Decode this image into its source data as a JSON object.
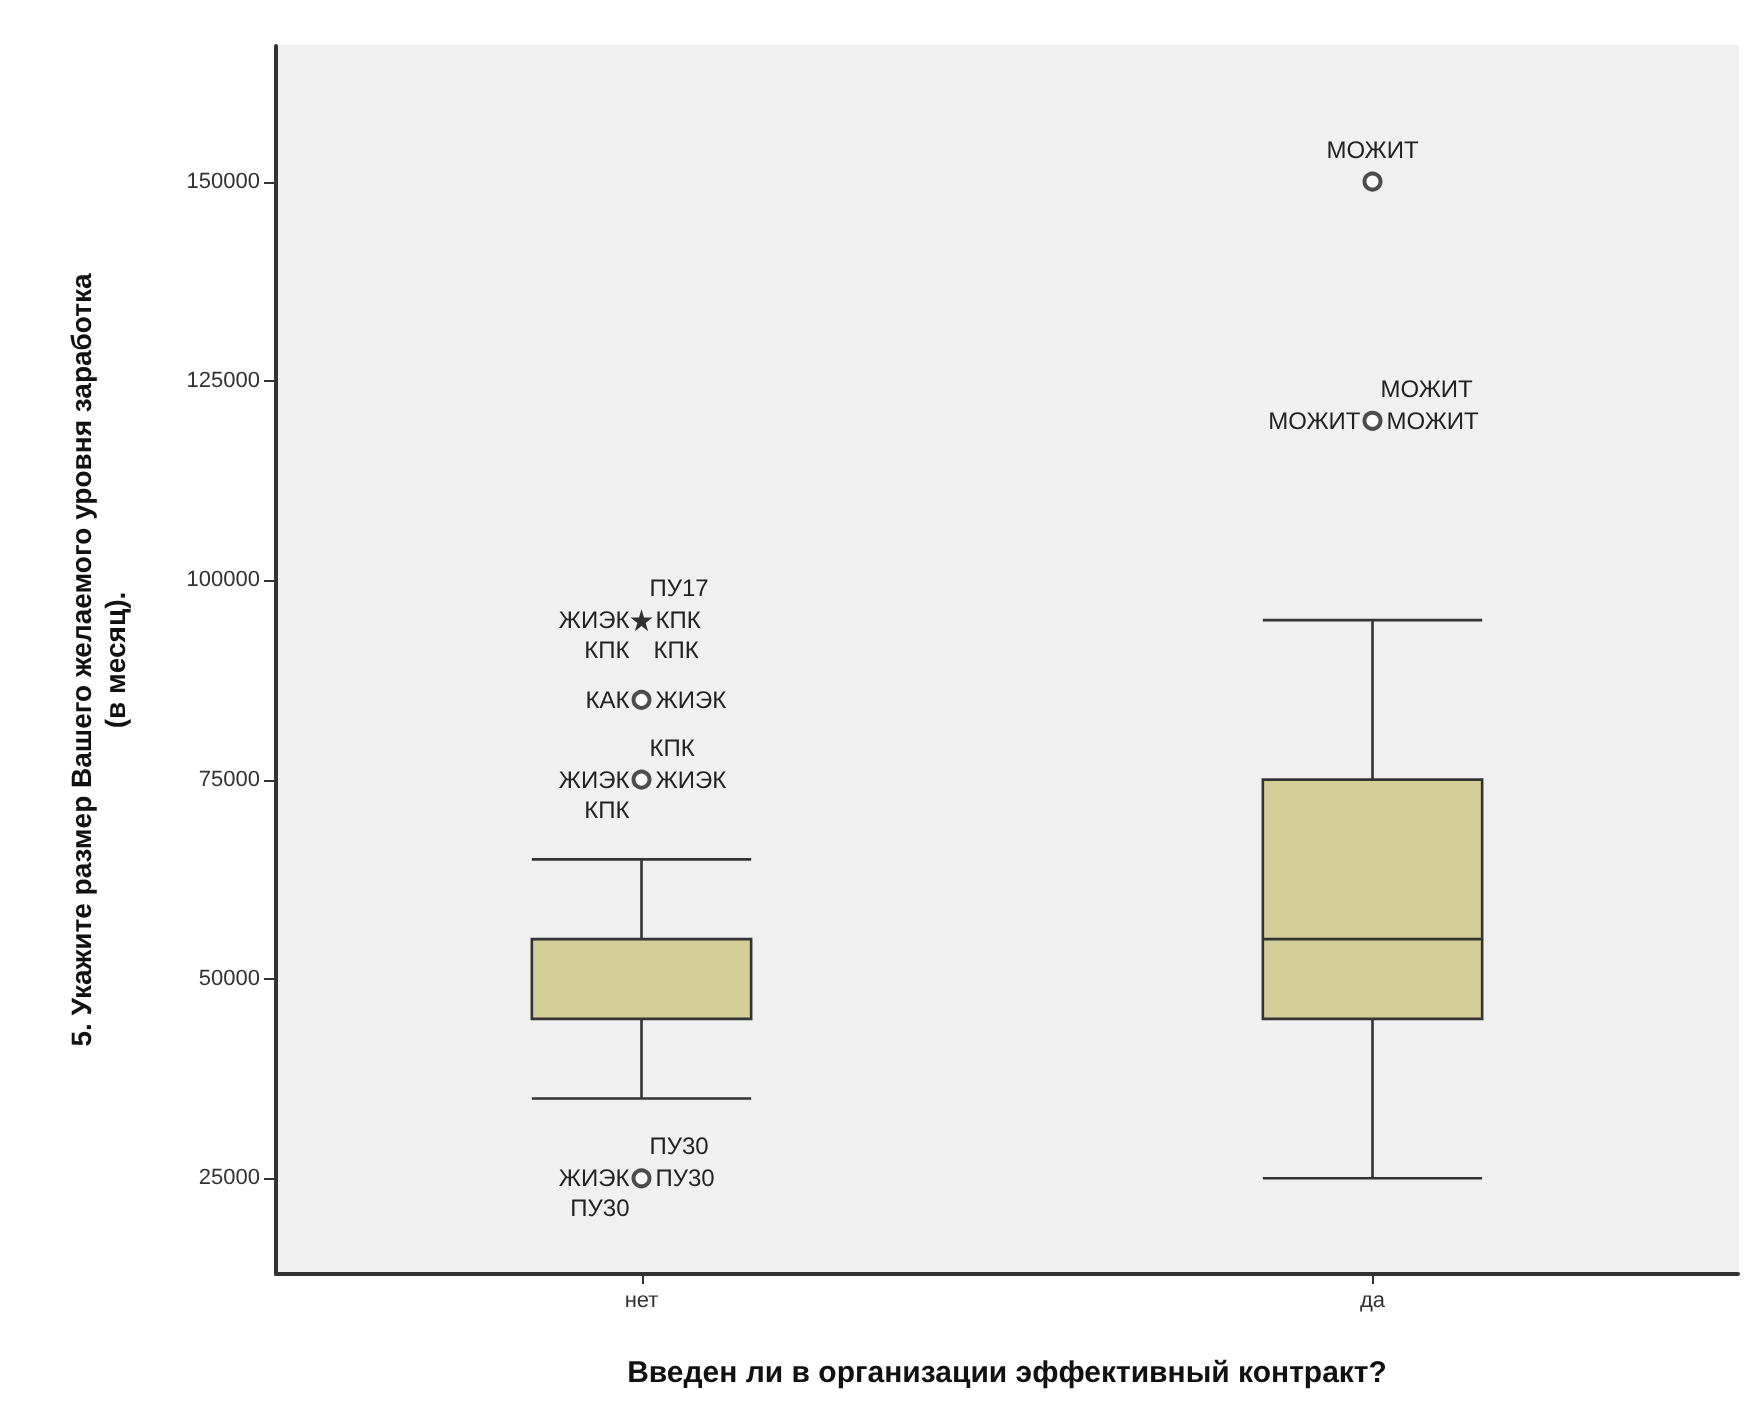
{
  "chart_data": {
    "type": "box",
    "xlabel": "Введен ли в организации эффективный контракт?",
    "ylabel": "5. Укажите размер Вашего желаемого уровня заработка\n(в месяц).",
    "categories": [
      "нет",
      "да"
    ],
    "ylim": [
      13000,
      167000
    ],
    "yticks": [
      25000,
      50000,
      75000,
      100000,
      125000,
      150000
    ],
    "grid": false,
    "series": [
      {
        "color": "#d3ce97",
        "boxes": [
          {
            "low": 35000,
            "q1": 45000,
            "median": 55000,
            "q3": 55000,
            "high": 65000
          },
          {
            "low": 25000,
            "q1": 45000,
            "median": 55000,
            "q3": 75000,
            "high": 95000
          }
        ]
      },
      {
        "type": "scatter",
        "marker": "circle",
        "color": "#222222",
        "x": [
          "нет",
          "нет",
          "нет",
          "да",
          "да"
        ],
        "values": [
          25000,
          75000,
          85000,
          120000,
          150000
        ]
      },
      {
        "type": "scatter",
        "marker": "star",
        "color": "#000000",
        "x": [
          "нет"
        ],
        "values": [
          95000
        ]
      }
    ],
    "annotations": [
      {
        "text": "ЖИЭК",
        "x": "нет",
        "y": 95000
      },
      {
        "text": "КПК",
        "x": "нет",
        "y": 95000
      },
      {
        "text": "ПУ17",
        "x": "нет",
        "y": 95000
      },
      {
        "text": "КПК",
        "x": "нет",
        "y": 95000
      },
      {
        "text": "КПК",
        "x": "нет",
        "y": 95000
      },
      {
        "text": "КАК",
        "x": "нет",
        "y": 85000
      },
      {
        "text": "ЖИЭК",
        "x": "нет",
        "y": 85000
      },
      {
        "text": "ЖИЭК",
        "x": "нет",
        "y": 75000
      },
      {
        "text": "ЖИЭК",
        "x": "нет",
        "y": 75000
      },
      {
        "text": "КПК",
        "x": "нет",
        "y": 75000
      },
      {
        "text": "КПК",
        "x": "нет",
        "y": 75000
      },
      {
        "text": "ЖИЭК",
        "x": "нет",
        "y": 25000
      },
      {
        "text": "ПУ30",
        "x": "нет",
        "y": 25000
      },
      {
        "text": "ПУ30",
        "x": "нет",
        "y": 25000
      },
      {
        "text": "ПУ30",
        "x": "нет",
        "y": 25000
      },
      {
        "text": "МОЖИТ",
        "x": "да",
        "y": 150000
      },
      {
        "text": "МОЖИТ",
        "x": "да",
        "y": 120000
      },
      {
        "text": "МОЖИТ",
        "x": "да",
        "y": 120000
      },
      {
        "text": "МОЖИТ",
        "x": "да",
        "y": 120000
      }
    ]
  }
}
